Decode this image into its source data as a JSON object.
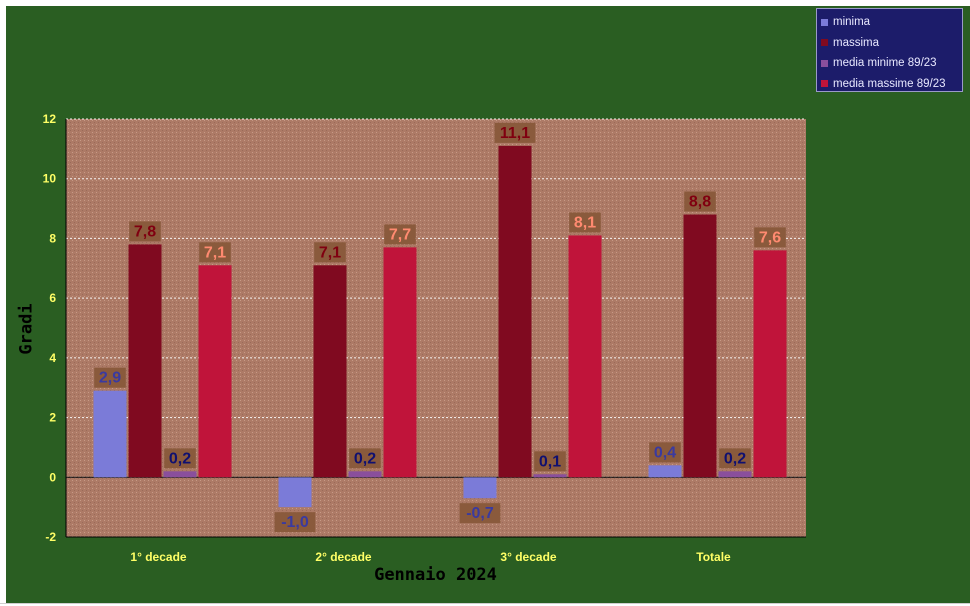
{
  "chart_data": {
    "type": "bar",
    "categories": [
      "1° decade",
      "2° decade",
      "3° decade",
      "Totale"
    ],
    "series": [
      {
        "name": "minima",
        "values": [
          2.9,
          -1.0,
          -0.7,
          0.4
        ],
        "labels": [
          "2,9",
          "-1,0",
          "-0,7",
          "0,4"
        ],
        "color": "#7b7bd8",
        "label_color": "#3a3aa0"
      },
      {
        "name": "massima",
        "values": [
          7.8,
          7.1,
          11.1,
          8.8
        ],
        "labels": [
          "7,8",
          "7,1",
          "11,1",
          "8,8"
        ],
        "color": "#800a20",
        "label_color": "#800010"
      },
      {
        "name": "media minime 89/23",
        "values": [
          0.2,
          0.2,
          0.1,
          0.2
        ],
        "labels": [
          "0,2",
          "0,2",
          "0,1",
          "0,2"
        ],
        "color": "#8a4f9c",
        "label_color": "#101070"
      },
      {
        "name": "media massime 89/23",
        "values": [
          7.1,
          7.7,
          8.1,
          7.6
        ],
        "labels": [
          "7,1",
          "7,7",
          "8,1",
          "7,6"
        ],
        "color": "#c0143a",
        "label_color": "#ff8a70"
      }
    ],
    "title": "",
    "xlabel": "Gennaio 2024",
    "ylabel": "Gradi",
    "ylim": [
      -2,
      12
    ],
    "yticks": [
      "-2",
      "0",
      "2",
      "4",
      "6",
      "8",
      "10",
      "12"
    ],
    "grid": true,
    "legend_position": "top-right"
  },
  "colors": {
    "background": "#2a5e22",
    "plot_area": "#ad7a66",
    "gridline": "#ffffff",
    "tick_label": "#ffff66",
    "label_box": "#8a5a3c"
  }
}
